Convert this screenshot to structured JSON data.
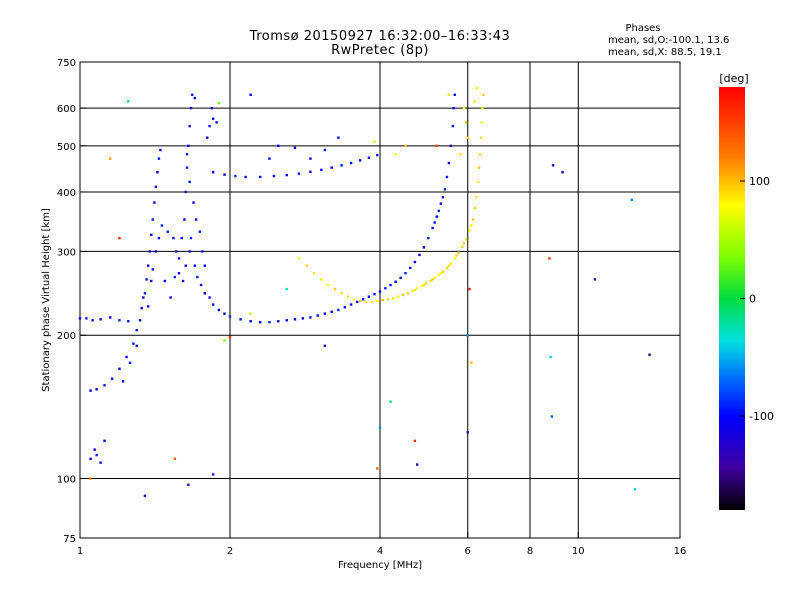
{
  "chart_data": {
    "type": "scatter",
    "title": "Tromsø 20150927 16:32:00–16:33:43",
    "subtitle": "RwPretec (8p)",
    "xlabel": "Frequency [MHz]",
    "ylabel": "Stationary phase Virtual Height [km]",
    "x_scale": "log",
    "y_scale": "log",
    "xlim": [
      1,
      16
    ],
    "ylim": [
      75,
      750
    ],
    "x_ticks": [
      1,
      2,
      4,
      6,
      8,
      10,
      16
    ],
    "x_tick_labels": [
      "1",
      "2",
      "4",
      "6",
      "8",
      "10",
      "16"
    ],
    "y_ticks": [
      75,
      100,
      200,
      300,
      400,
      500,
      600,
      750
    ],
    "y_tick_labels": [
      "75",
      "100",
      "200",
      "300",
      "400",
      "500",
      "600",
      "750"
    ],
    "x_gridlines": [
      2,
      4,
      6,
      8,
      10
    ],
    "y_gridlines": [
      100,
      200,
      300,
      400,
      500,
      600
    ],
    "grid": true,
    "phase_stats": {
      "heading": "Phases",
      "line1": "mean, sd,O:-100.1, 13.6",
      "line2": "mean, sd,X: 88.5, 19.1"
    },
    "colorbar": {
      "label": "[deg]",
      "range": [
        -180,
        180
      ],
      "tick_labels": [
        "100",
        "0",
        "-100"
      ],
      "tick_values": [
        100,
        0,
        -100
      ],
      "placement": "right"
    },
    "series": [
      {
        "mode": "O",
        "mean_phase_deg": -100.1,
        "points": [
          [
            1.0,
            217
          ],
          [
            1.03,
            217
          ],
          [
            1.06,
            215
          ],
          [
            1.1,
            216
          ],
          [
            1.15,
            218
          ],
          [
            1.2,
            215
          ],
          [
            1.25,
            214
          ],
          [
            1.05,
            153
          ],
          [
            1.08,
            154
          ],
          [
            1.12,
            157
          ],
          [
            1.16,
            162
          ],
          [
            1.2,
            170
          ],
          [
            1.24,
            180
          ],
          [
            1.28,
            192
          ],
          [
            1.3,
            205
          ],
          [
            1.32,
            215
          ],
          [
            1.33,
            228
          ],
          [
            1.35,
            245
          ],
          [
            1.36,
            262
          ],
          [
            1.37,
            280
          ],
          [
            1.38,
            300
          ],
          [
            1.39,
            325
          ],
          [
            1.4,
            350
          ],
          [
            1.41,
            380
          ],
          [
            1.42,
            410
          ],
          [
            1.43,
            440
          ],
          [
            1.44,
            470
          ],
          [
            1.45,
            490
          ],
          [
            1.37,
            230
          ],
          [
            1.39,
            260
          ],
          [
            1.4,
            275
          ],
          [
            1.34,
            240
          ],
          [
            1.42,
            300
          ],
          [
            1.44,
            320
          ],
          [
            1.46,
            340
          ],
          [
            1.5,
            330
          ],
          [
            1.48,
            260
          ],
          [
            1.52,
            240
          ],
          [
            1.55,
            265
          ],
          [
            1.58,
            290
          ],
          [
            1.6,
            320
          ],
          [
            1.62,
            350
          ],
          [
            1.63,
            400
          ],
          [
            1.64,
            450
          ],
          [
            1.65,
            500
          ],
          [
            1.66,
            550
          ],
          [
            1.67,
            600
          ],
          [
            1.68,
            640
          ],
          [
            1.7,
            630
          ],
          [
            1.66,
            300
          ],
          [
            1.7,
            280
          ],
          [
            1.72,
            265
          ],
          [
            1.75,
            255
          ],
          [
            1.78,
            245
          ],
          [
            1.82,
            240
          ],
          [
            1.64,
            480
          ],
          [
            1.66,
            420
          ],
          [
            1.69,
            380
          ],
          [
            1.71,
            350
          ],
          [
            1.74,
            330
          ],
          [
            1.76,
            300
          ],
          [
            1.78,
            280
          ],
          [
            1.8,
            520
          ],
          [
            1.82,
            550
          ],
          [
            1.85,
            570
          ],
          [
            1.88,
            560
          ],
          [
            1.84,
            600
          ],
          [
            1.58,
            270
          ],
          [
            1.56,
            300
          ],
          [
            1.54,
            320
          ],
          [
            1.61,
            260
          ],
          [
            1.63,
            280
          ],
          [
            1.67,
            320
          ],
          [
            1.85,
            232
          ],
          [
            1.9,
            226
          ],
          [
            1.95,
            222
          ],
          [
            2.0,
            219
          ],
          [
            2.1,
            216
          ],
          [
            2.2,
            214
          ],
          [
            2.3,
            213
          ],
          [
            2.4,
            213
          ],
          [
            2.5,
            214
          ],
          [
            2.6,
            215
          ],
          [
            2.7,
            216
          ],
          [
            2.8,
            217
          ],
          [
            2.9,
            218
          ],
          [
            3.0,
            220
          ],
          [
            3.1,
            222
          ],
          [
            3.2,
            224
          ],
          [
            3.3,
            226
          ],
          [
            3.4,
            229
          ],
          [
            3.5,
            232
          ],
          [
            3.6,
            235
          ],
          [
            3.7,
            238
          ],
          [
            3.8,
            241
          ],
          [
            3.9,
            244
          ],
          [
            4.0,
            247
          ],
          [
            4.1,
            251
          ],
          [
            4.2,
            255
          ],
          [
            4.3,
            259
          ],
          [
            4.4,
            264
          ],
          [
            4.5,
            270
          ],
          [
            4.6,
            277
          ],
          [
            4.7,
            285
          ],
          [
            4.8,
            295
          ],
          [
            4.9,
            306
          ],
          [
            5.0,
            320
          ],
          [
            5.1,
            336
          ],
          [
            5.2,
            355
          ],
          [
            5.3,
            378
          ],
          [
            5.4,
            405
          ],
          [
            5.45,
            430
          ],
          [
            5.5,
            460
          ],
          [
            5.55,
            500
          ],
          [
            5.6,
            550
          ],
          [
            5.62,
            600
          ],
          [
            5.65,
            640
          ],
          [
            5.35,
            390
          ],
          [
            5.25,
            365
          ],
          [
            5.15,
            345
          ],
          [
            1.85,
            440
          ],
          [
            1.95,
            435
          ],
          [
            2.05,
            432
          ],
          [
            2.15,
            430
          ],
          [
            2.3,
            430
          ],
          [
            2.45,
            432
          ],
          [
            2.6,
            434
          ],
          [
            2.75,
            437
          ],
          [
            2.9,
            441
          ],
          [
            3.05,
            445
          ],
          [
            3.2,
            450
          ],
          [
            3.35,
            455
          ],
          [
            3.5,
            460
          ],
          [
            3.65,
            466
          ],
          [
            3.8,
            472
          ],
          [
            3.95,
            478
          ],
          [
            2.5,
            500
          ],
          [
            2.7,
            495
          ],
          [
            2.9,
            470
          ],
          [
            3.1,
            490
          ],
          [
            3.3,
            520
          ],
          [
            2.4,
            470
          ],
          [
            1.05,
            110
          ],
          [
            1.08,
            112
          ],
          [
            1.1,
            108
          ],
          [
            1.07,
            115
          ],
          [
            1.12,
            120
          ],
          [
            1.22,
            160
          ],
          [
            1.26,
            175
          ],
          [
            1.3,
            190
          ]
        ]
      },
      {
        "mode": "X",
        "mean_phase_deg": 88.5,
        "points": [
          [
            2.75,
            290
          ],
          [
            2.85,
            280
          ],
          [
            2.95,
            270
          ],
          [
            3.05,
            262
          ],
          [
            3.15,
            255
          ],
          [
            3.25,
            250
          ],
          [
            3.35,
            245
          ],
          [
            3.45,
            241
          ],
          [
            3.55,
            238
          ],
          [
            3.65,
            236
          ],
          [
            3.75,
            235
          ],
          [
            3.85,
            235
          ],
          [
            3.95,
            236
          ],
          [
            4.05,
            237
          ],
          [
            4.15,
            238
          ],
          [
            4.25,
            239
          ],
          [
            4.35,
            241
          ],
          [
            4.45,
            243
          ],
          [
            4.55,
            245
          ],
          [
            4.65,
            248
          ],
          [
            4.75,
            251
          ],
          [
            4.85,
            254
          ],
          [
            4.95,
            257
          ],
          [
            5.05,
            260
          ],
          [
            5.15,
            264
          ],
          [
            5.25,
            268
          ],
          [
            5.35,
            272
          ],
          [
            5.45,
            277
          ],
          [
            5.55,
            283
          ],
          [
            5.65,
            290
          ],
          [
            5.75,
            298
          ],
          [
            5.85,
            307
          ],
          [
            5.95,
            318
          ],
          [
            6.05,
            332
          ],
          [
            6.15,
            350
          ],
          [
            6.2,
            370
          ],
          [
            6.25,
            390
          ],
          [
            6.3,
            420
          ],
          [
            6.32,
            450
          ],
          [
            6.35,
            480
          ],
          [
            6.38,
            520
          ],
          [
            6.4,
            560
          ],
          [
            6.42,
            600
          ],
          [
            6.45,
            640
          ],
          [
            6.2,
            620
          ],
          [
            6.25,
            660
          ],
          [
            6.1,
            340
          ],
          [
            5.9,
            312
          ],
          [
            5.7,
            294
          ],
          [
            5.5,
            280
          ],
          [
            5.3,
            270
          ],
          [
            5.1,
            262
          ],
          [
            4.9,
            255
          ],
          [
            4.7,
            249
          ],
          [
            5.9,
            600
          ],
          [
            5.95,
            560
          ],
          [
            6.0,
            520
          ],
          [
            5.8,
            480
          ],
          [
            4.3,
            480
          ],
          [
            4.5,
            500
          ]
        ]
      }
    ],
    "scattered_points": [
      [
        1.25,
        620,
        -10
      ],
      [
        1.9,
        615,
        30
      ],
      [
        1.55,
        110,
        130
      ],
      [
        1.05,
        100,
        120
      ],
      [
        1.35,
        92,
        -110
      ],
      [
        1.65,
        97,
        -110
      ],
      [
        1.85,
        102,
        -120
      ],
      [
        2.0,
        198,
        160
      ],
      [
        1.95,
        195,
        40
      ],
      [
        2.2,
        222,
        60
      ],
      [
        3.1,
        190,
        -120
      ],
      [
        3.95,
        105,
        130
      ],
      [
        4.0,
        128,
        -60
      ],
      [
        4.7,
        120,
        160
      ],
      [
        4.75,
        107,
        -140
      ],
      [
        5.2,
        500,
        150
      ],
      [
        5.5,
        640,
        90
      ],
      [
        6.05,
        250,
        170
      ],
      [
        6.0,
        200,
        -60
      ],
      [
        6.1,
        175,
        100
      ],
      [
        6.0,
        125,
        -120
      ],
      [
        8.9,
        455,
        -120
      ],
      [
        9.3,
        440,
        -130
      ],
      [
        8.75,
        290,
        150
      ],
      [
        8.8,
        180,
        -40
      ],
      [
        8.85,
        135,
        -70
      ],
      [
        10.8,
        262,
        -140
      ],
      [
        12.8,
        385,
        -60
      ],
      [
        13.0,
        95,
        -40
      ],
      [
        13.9,
        182,
        -150
      ],
      [
        2.2,
        640,
        -100
      ],
      [
        1.15,
        470,
        110
      ],
      [
        1.2,
        320,
        170
      ],
      [
        2.6,
        250,
        -30
      ],
      [
        3.9,
        510,
        60
      ],
      [
        4.2,
        145,
        -10
      ]
    ]
  }
}
